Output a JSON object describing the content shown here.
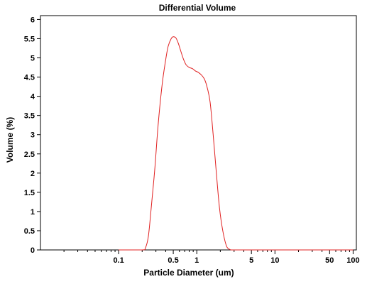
{
  "chart_data": {
    "type": "line",
    "title": "Differential Volume",
    "xlabel": "Particle Diameter (um)",
    "ylabel": "Volume (%)",
    "x_scale": "log",
    "xlim": [
      0.01,
      110
    ],
    "ylim": [
      0,
      6.1
    ],
    "grid": false,
    "x_ticks": [
      0.1,
      0.5,
      1,
      5,
      10,
      50,
      100
    ],
    "x_tick_labels": [
      "0.1",
      "0.5",
      "1",
      "5",
      "10",
      "50",
      "100"
    ],
    "x_minor_ticks": [
      0.02,
      0.03,
      0.04,
      0.05,
      0.06,
      0.07,
      0.08,
      0.09,
      0.2,
      0.3,
      0.4,
      0.6,
      0.7,
      0.8,
      0.9,
      2,
      3,
      4,
      6,
      7,
      8,
      9,
      20,
      30,
      40,
      60,
      70,
      80,
      90
    ],
    "y_ticks": [
      0,
      0.5,
      1,
      1.5,
      2,
      2.5,
      3,
      3.5,
      4,
      4.5,
      5,
      5.5,
      6
    ],
    "y_tick_labels": [
      "0",
      "0.5",
      "1",
      "1.5",
      "2",
      "2.5",
      "3",
      "3.5",
      "4",
      "4.5",
      "5",
      "5.5",
      "6"
    ],
    "series": [
      {
        "color": "#e02020",
        "x": [
          0.1,
          0.2,
          0.22,
          0.24,
          0.26,
          0.29,
          0.32,
          0.36,
          0.4,
          0.43,
          0.47,
          0.5,
          0.54,
          0.58,
          0.63,
          0.68,
          0.73,
          0.8,
          0.88,
          0.96,
          1.05,
          1.15,
          1.25,
          1.35,
          1.48,
          1.62,
          1.78,
          1.95,
          2.15,
          2.4,
          2.65,
          2.8,
          3.0,
          5,
          10,
          50,
          100
        ],
        "y": [
          0,
          0,
          0.05,
          0.35,
          1.05,
          2.1,
          3.25,
          4.3,
          4.95,
          5.3,
          5.5,
          5.55,
          5.52,
          5.38,
          5.15,
          4.95,
          4.82,
          4.75,
          4.72,
          4.66,
          4.62,
          4.55,
          4.45,
          4.25,
          3.85,
          3.0,
          2.0,
          1.1,
          0.5,
          0.1,
          0.01,
          0,
          0,
          0,
          0,
          0,
          0
        ]
      }
    ]
  }
}
